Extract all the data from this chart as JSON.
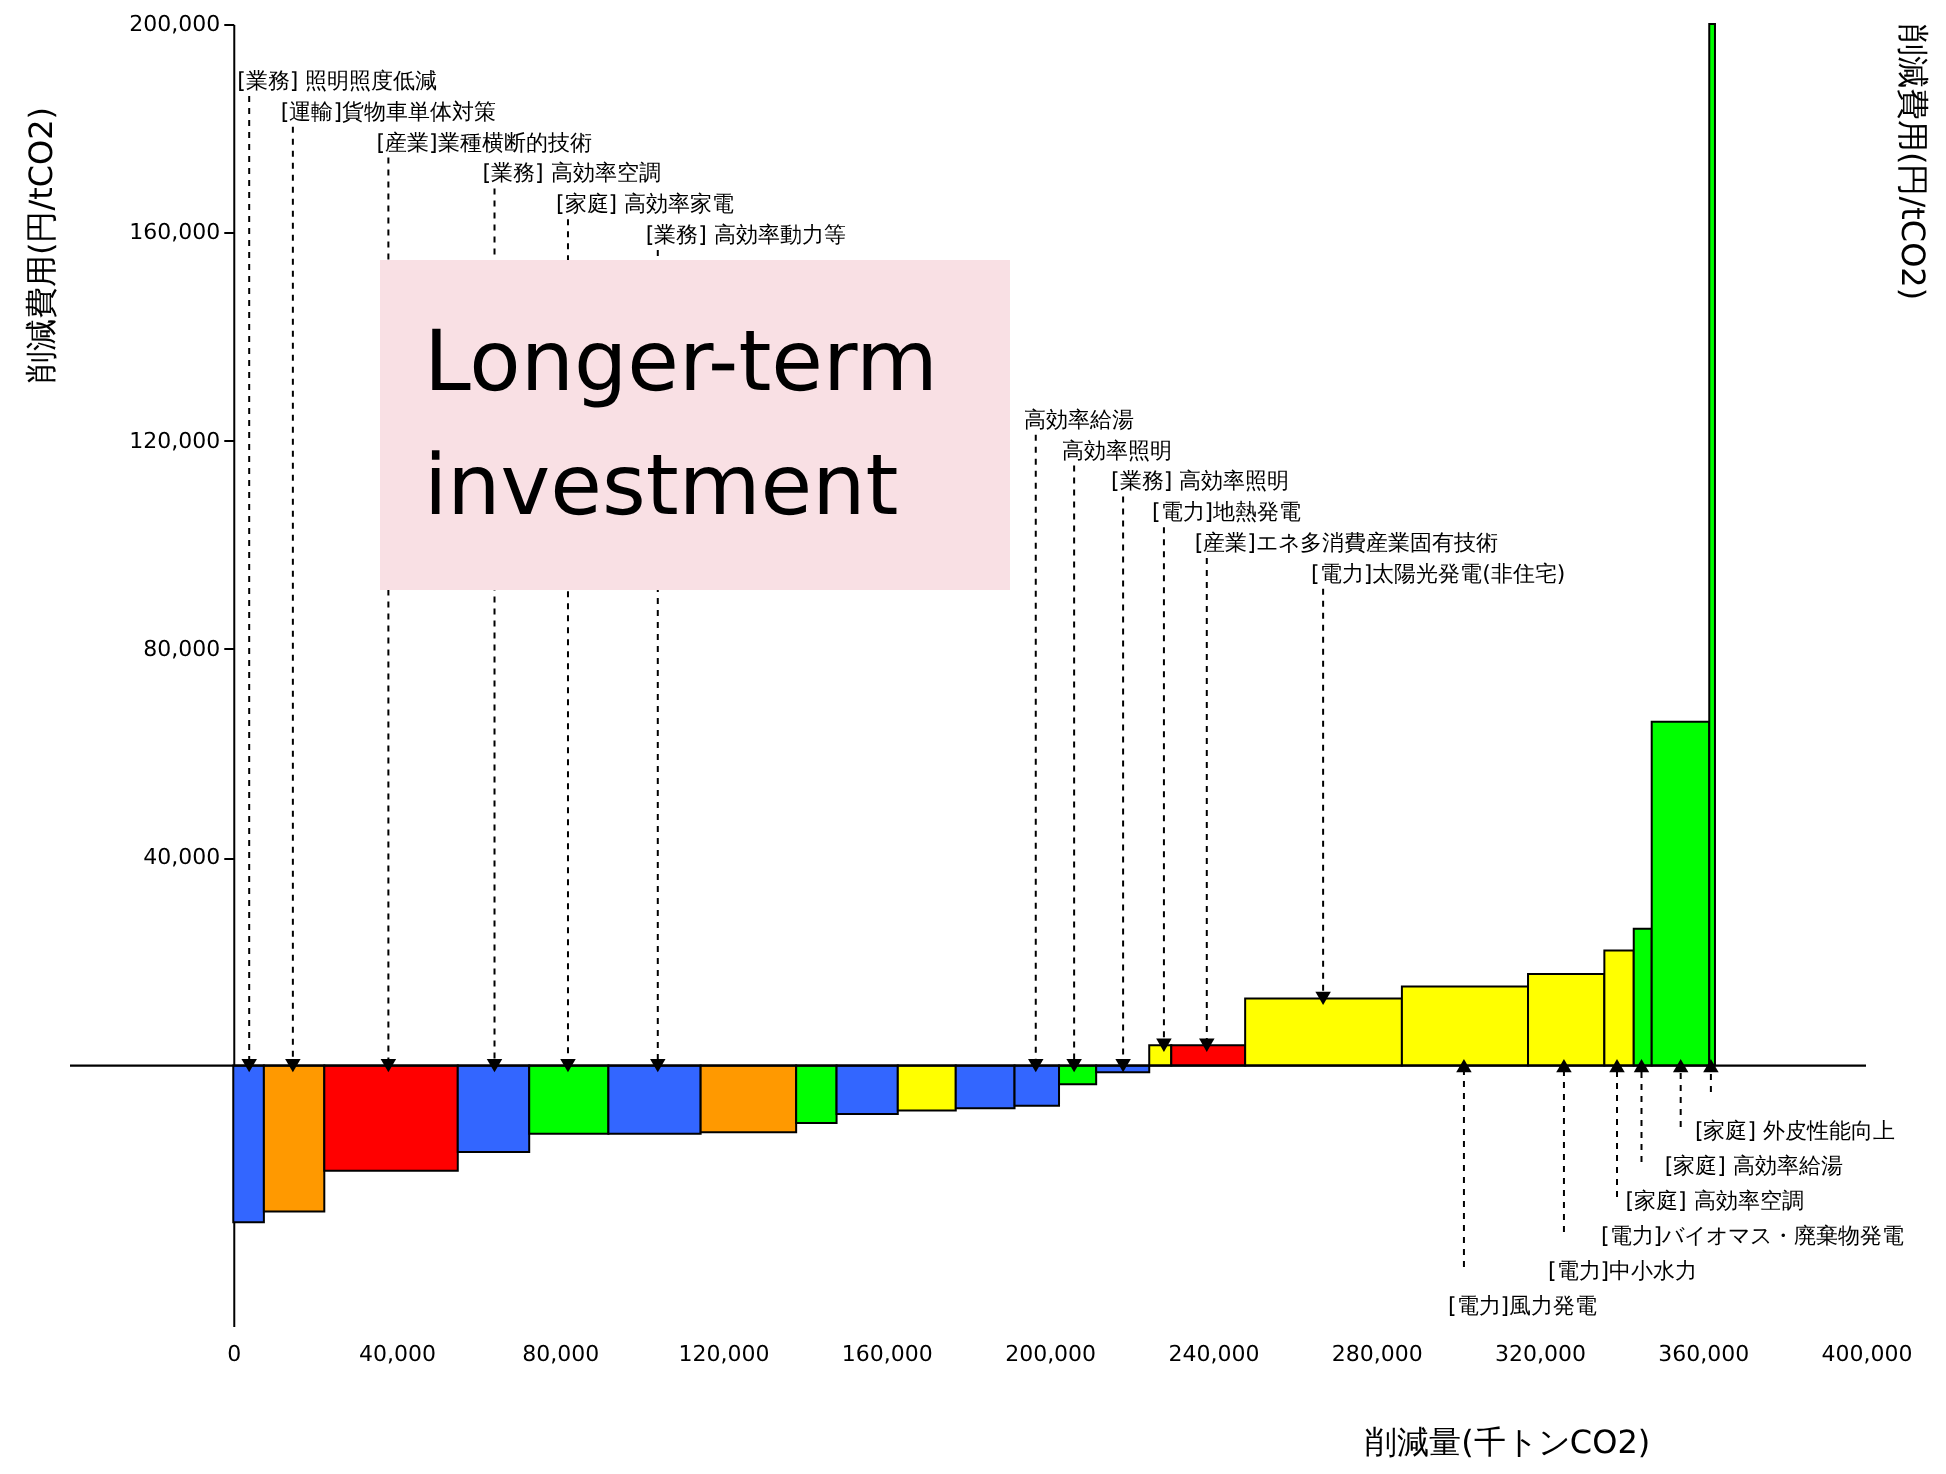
{
  "chart_data": {
    "type": "histogram",
    "bins": [
      0,
      7500,
      22300,
      55000,
      72500,
      91900,
      114500,
      137900,
      147800,
      162800,
      177000,
      191400,
      202300,
      211400,
      224400,
      229800,
      247900,
      286300,
      317200,
      335900,
      343100,
      347500,
      361600,
      363000
    ],
    "values": [
      -30100,
      -28000,
      -20200,
      -16600,
      -13100,
      -13100,
      -12800,
      -11000,
      -9300,
      -8600,
      -8200,
      -7700,
      -3600,
      -1300,
      3900,
      3900,
      12900,
      15200,
      17600,
      22100,
      26300,
      66000,
      200000
    ],
    "colors": [
      "#3366ff",
      "#ff9900",
      "#ff0000",
      "#3366ff",
      "#00ff00",
      "#3366ff",
      "#ff9900",
      "#00ff00",
      "#3366ff",
      "#ffff00",
      "#3366ff",
      "#3366ff",
      "#00ff00",
      "#3366ff",
      "#ffff00",
      "#ff0000",
      "#ffff00",
      "#ffff00",
      "#ffff00",
      "#ffff00",
      "#00ff00",
      "#00ff00",
      "#00ff00"
    ],
    "xlabel": "削減量(千トンCO2)",
    "ylabel": "削減費用(円/tCO2)",
    "y2label": "削減費用(円/tCO2)",
    "xlim": [
      -40000,
      400000
    ],
    "ylim": [
      -50000,
      200000
    ],
    "xticks": [
      0,
      {
        "value": 40000,
        "label": "40,000"
      },
      {
        "value": 80000,
        "label": "80,000"
      },
      {
        "value": 120000,
        "label": "120,000"
      },
      {
        "value": 160000,
        "label": "160,000"
      },
      {
        "value": 200000,
        "label": "200,000"
      },
      {
        "value": 240000,
        "label": "240,000"
      },
      {
        "value": 280000,
        "label": "280,000"
      },
      {
        "value": 320000,
        "label": "320,000"
      },
      {
        "value": 360000,
        "label": "360,000"
      },
      {
        "value": 400000,
        "label": "400,000"
      }
    ],
    "yticks": [
      {
        "value": 40000,
        "label": "40,000"
      },
      {
        "value": 80000,
        "label": "80,000"
      },
      {
        "value": 120000,
        "label": "120,000"
      },
      {
        "value": 160000,
        "label": "160,000"
      },
      {
        "value": 200000,
        "label": "200,000"
      }
    ],
    "annotations": [
      "Longer-term investment",
      {
        "text": "[業務] 照明照度低減",
        "x": 3900,
        "y": 0
      },
      {
        "text": "[運輸]貨物車単体対策",
        "x": 14600,
        "y": 0
      },
      {
        "text": "[産業]業種横断的技術",
        "x": 38000,
        "y": 0
      },
      {
        "text": "[業務] 高効率空調",
        "x": 64000,
        "y": 0
      },
      {
        "text": "[家庭] 高効率家電",
        "x": 82000,
        "y": 0
      },
      {
        "text": "[業務] 高効率動力等",
        "x": 104000,
        "y": 0
      },
      {
        "text": "高効率給湯",
        "x": 196600,
        "y": 0
      },
      {
        "text": "高効率照明",
        "x": 206000,
        "y": 0
      },
      {
        "text": "[業務] 高効率照明",
        "x": 218000,
        "y": 0
      },
      {
        "text": "[電力]地熱発電",
        "x": 228000,
        "y": 3900
      },
      {
        "text": "[産業]エネ多消費産業固有技術",
        "x": 238500,
        "y": 3900
      },
      {
        "text": "[電力]太陽光発電(非住宅)",
        "x": 267000,
        "y": 12900
      },
      {
        "text": "[家庭] 外皮性能向上",
        "x": 362000,
        "y": 0
      },
      {
        "text": "[家庭] 高効率給湯",
        "x": 354600,
        "y": 0
      },
      {
        "text": "[家庭] 高効率空調",
        "x": 345000,
        "y": 0
      },
      {
        "text": "[電力]バイオマス・廃棄物発電",
        "x": 339000,
        "y": 0
      },
      {
        "text": "[電力]中小水力",
        "x": 326000,
        "y": 0
      },
      {
        "text": "[電力]風力発電",
        "x": 301500,
        "y": 0
      }
    ]
  }
}
